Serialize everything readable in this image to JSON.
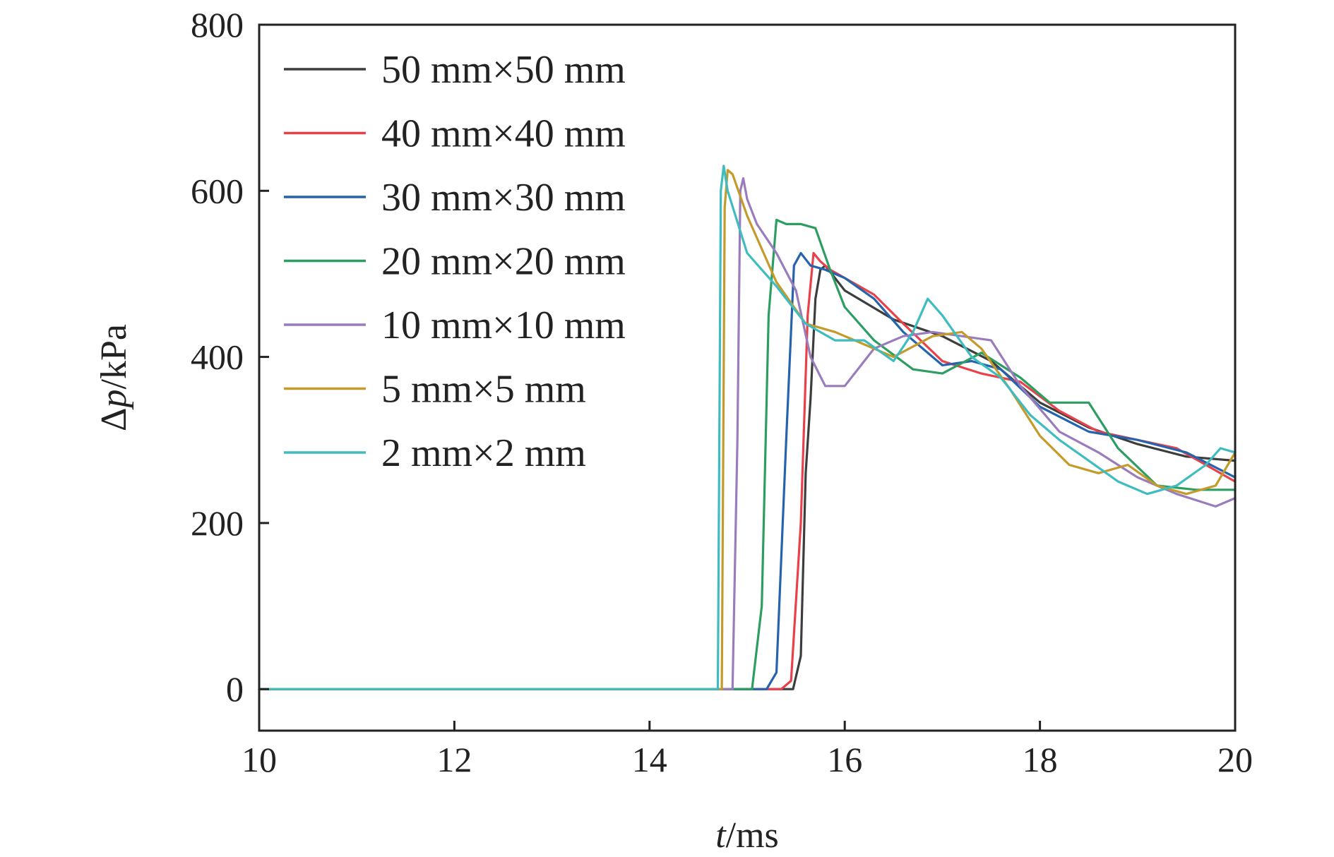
{
  "chart_data": {
    "type": "line",
    "title": "",
    "xlabel": {
      "var": "t",
      "unit": "/ms"
    },
    "ylabel": {
      "var": "p",
      "prefix": "Δ",
      "unit": "/kPa"
    },
    "xlim": [
      10,
      20
    ],
    "ylim": [
      -50,
      800
    ],
    "xticks": [
      10,
      12,
      14,
      16,
      18,
      20
    ],
    "yticks": [
      0,
      200,
      400,
      600,
      800
    ],
    "grid": false,
    "legend": "top-left",
    "series": [
      {
        "name": "50 mm×50 mm",
        "color": "#3d3d3d",
        "x": [
          10,
          15.47,
          15.55,
          15.6,
          15.65,
          15.7,
          15.75,
          15.8,
          16.0,
          16.5,
          17.0,
          17.5,
          18.0,
          18.5,
          19.0,
          19.5,
          20.0
        ],
        "y": [
          0,
          0,
          40,
          260,
          350,
          470,
          505,
          510,
          480,
          445,
          425,
          395,
          345,
          315,
          295,
          280,
          275
        ]
      },
      {
        "name": "40 mm×40 mm",
        "color": "#e8414a",
        "x": [
          10,
          15.35,
          15.45,
          15.55,
          15.62,
          15.68,
          15.75,
          15.85,
          16.0,
          16.3,
          16.6,
          17.0,
          17.4,
          17.8,
          18.2,
          18.6,
          19.0,
          19.4,
          20.0
        ],
        "y": [
          0,
          0,
          10,
          200,
          450,
          525,
          515,
          505,
          495,
          475,
          440,
          395,
          380,
          370,
          335,
          310,
          300,
          290,
          250
        ]
      },
      {
        "name": "30 mm×30 mm",
        "color": "#2564ad",
        "x": [
          10,
          15.2,
          15.3,
          15.4,
          15.48,
          15.55,
          15.65,
          15.8,
          16.0,
          16.3,
          16.6,
          17.0,
          17.3,
          17.6,
          18.0,
          18.5,
          19.0,
          19.5,
          20.0
        ],
        "y": [
          0,
          0,
          20,
          300,
          510,
          525,
          510,
          505,
          495,
          470,
          430,
          390,
          395,
          385,
          340,
          310,
          300,
          285,
          255
        ]
      },
      {
        "name": "20 mm×20 mm",
        "color": "#2d9e61",
        "x": [
          10,
          15.05,
          15.15,
          15.22,
          15.3,
          15.4,
          15.55,
          15.7,
          15.85,
          16.0,
          16.3,
          16.7,
          17.0,
          17.4,
          17.8,
          18.1,
          18.3,
          18.5,
          18.8,
          19.2,
          19.6,
          20.0
        ],
        "y": [
          0,
          0,
          100,
          450,
          565,
          560,
          560,
          555,
          505,
          460,
          420,
          385,
          380,
          405,
          375,
          345,
          345,
          345,
          290,
          245,
          240,
          240
        ]
      },
      {
        "name": "10 mm×10 mm",
        "color": "#9a7cbc",
        "x": [
          10,
          14.85,
          14.9,
          14.93,
          14.96,
          15.0,
          15.1,
          15.3,
          15.5,
          15.65,
          15.8,
          16.0,
          16.3,
          16.6,
          16.9,
          17.2,
          17.5,
          17.8,
          18.2,
          18.6,
          19.0,
          19.4,
          19.8,
          20.0
        ],
        "y": [
          0,
          0,
          300,
          600,
          615,
          590,
          560,
          525,
          480,
          400,
          365,
          365,
          410,
          425,
          430,
          425,
          420,
          365,
          310,
          285,
          255,
          235,
          220,
          230
        ]
      },
      {
        "name": "5 mm×5 mm",
        "color": "#c49a2b",
        "x": [
          10,
          14.74,
          14.77,
          14.8,
          14.85,
          15.0,
          15.3,
          15.6,
          15.9,
          16.2,
          16.5,
          16.9,
          17.2,
          17.4,
          17.7,
          18.0,
          18.3,
          18.6,
          18.9,
          19.2,
          19.5,
          19.8,
          20.0
        ],
        "y": [
          0,
          0,
          580,
          625,
          620,
          570,
          490,
          440,
          430,
          415,
          400,
          425,
          430,
          410,
          360,
          305,
          270,
          260,
          270,
          245,
          235,
          245,
          285
        ]
      },
      {
        "name": "2 mm×2 mm",
        "color": "#3ebcbf",
        "x": [
          10,
          14.7,
          14.73,
          14.76,
          14.8,
          15.0,
          15.3,
          15.6,
          15.9,
          16.2,
          16.5,
          16.7,
          16.85,
          17.0,
          17.3,
          17.6,
          17.9,
          18.2,
          18.5,
          18.8,
          19.1,
          19.4,
          19.7,
          19.85,
          20.0
        ],
        "y": [
          0,
          0,
          600,
          630,
          600,
          525,
          485,
          440,
          420,
          420,
          395,
          430,
          470,
          450,
          400,
          375,
          330,
          300,
          275,
          250,
          235,
          245,
          270,
          290,
          285
        ]
      }
    ]
  }
}
